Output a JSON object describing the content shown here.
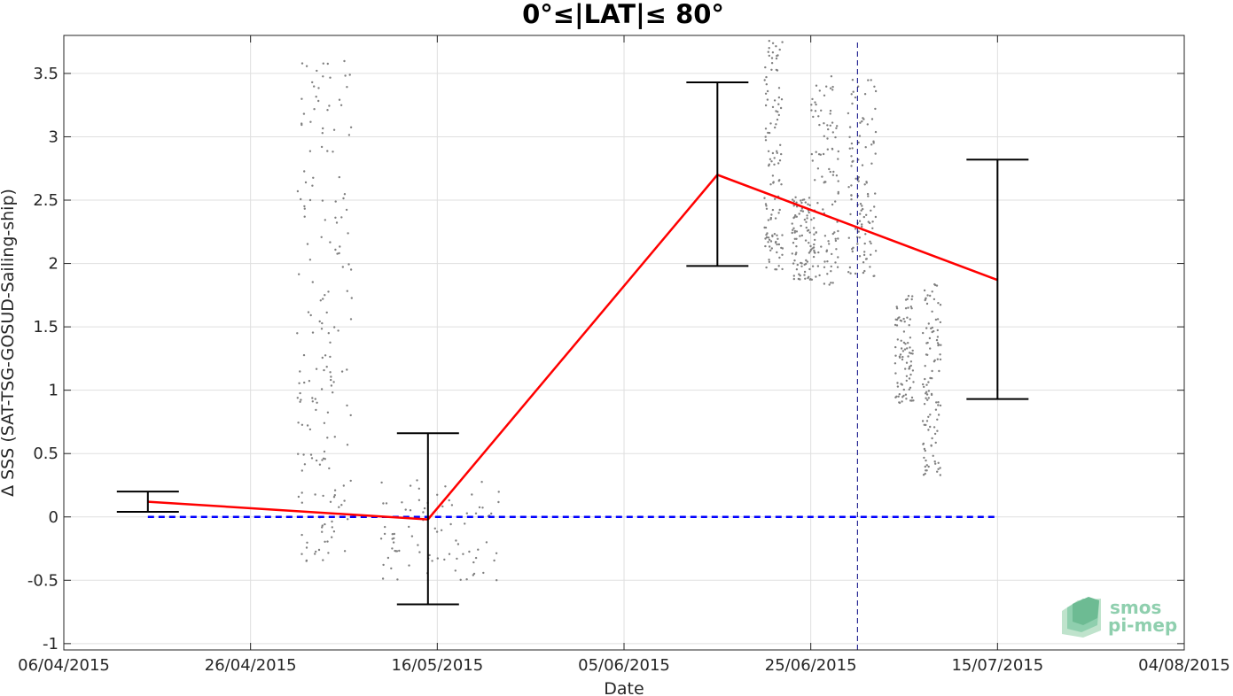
{
  "chart_data": {
    "type": "line",
    "title": "0°≤|LAT|≤ 80°",
    "xlabel": "Date",
    "ylabel": "Δ SSS (SAT-TSG-GOSUD-Sailing-ship)",
    "xlim": [
      "2015-04-06",
      "2015-08-04"
    ],
    "ylim": [
      -1.05,
      3.8
    ],
    "x_ticks": [
      "06/04/2015",
      "26/04/2015",
      "16/05/2015",
      "05/06/2015",
      "25/06/2015",
      "15/07/2015",
      "04/08/2015"
    ],
    "y_ticks": [
      "-1",
      "-0.5",
      "0",
      "0.5",
      "1",
      "1.5",
      "2",
      "2.5",
      "3",
      "3.5"
    ],
    "grid": true,
    "series": [
      {
        "kind": "mean-with-errorbars",
        "color": "#ff0000",
        "x": [
          "2015-04-15",
          "2015-05-15",
          "2015-06-15",
          "2015-07-15"
        ],
        "y": [
          0.12,
          -0.02,
          2.7,
          1.87
        ],
        "err_low": [
          0.04,
          -0.69,
          1.98,
          0.93
        ],
        "err_high": [
          0.2,
          0.66,
          3.43,
          2.82
        ]
      },
      {
        "kind": "zero-reference",
        "color": "#0000ff",
        "x": [
          "2015-04-15",
          "2015-07-15"
        ],
        "y": [
          0,
          0
        ]
      },
      {
        "kind": "vertical-marker",
        "color": "#000080",
        "x": "2015-06-30"
      },
      {
        "kind": "scatter-clusters",
        "color": "#808080",
        "clusters": [
          {
            "x0": "2015-05-01",
            "x1": "2015-05-06",
            "y_low": -0.35,
            "y_high": 3.62
          },
          {
            "x0": "2015-05-10",
            "x1": "2015-05-22",
            "y_low": -0.5,
            "y_high": 0.29
          },
          {
            "x0": "2015-06-20",
            "x1": "2015-06-21",
            "y_low": 1.95,
            "y_high": 3.78
          },
          {
            "x0": "2015-06-23",
            "x1": "2015-06-24",
            "y_low": 1.87,
            "y_high": 2.55
          },
          {
            "x0": "2015-06-25",
            "x1": "2015-06-27",
            "y_low": 1.83,
            "y_high": 3.52
          },
          {
            "x0": "2015-06-29",
            "x1": "2015-07-01",
            "y_low": 1.9,
            "y_high": 3.47
          },
          {
            "x0": "2015-07-04",
            "x1": "2015-07-05",
            "y_low": 0.9,
            "y_high": 1.77
          },
          {
            "x0": "2015-07-07",
            "x1": "2015-07-08",
            "y_low": 0.33,
            "y_high": 1.85
          }
        ]
      }
    ]
  },
  "logo": {
    "line1": "smos",
    "line2": "pi-mep"
  }
}
